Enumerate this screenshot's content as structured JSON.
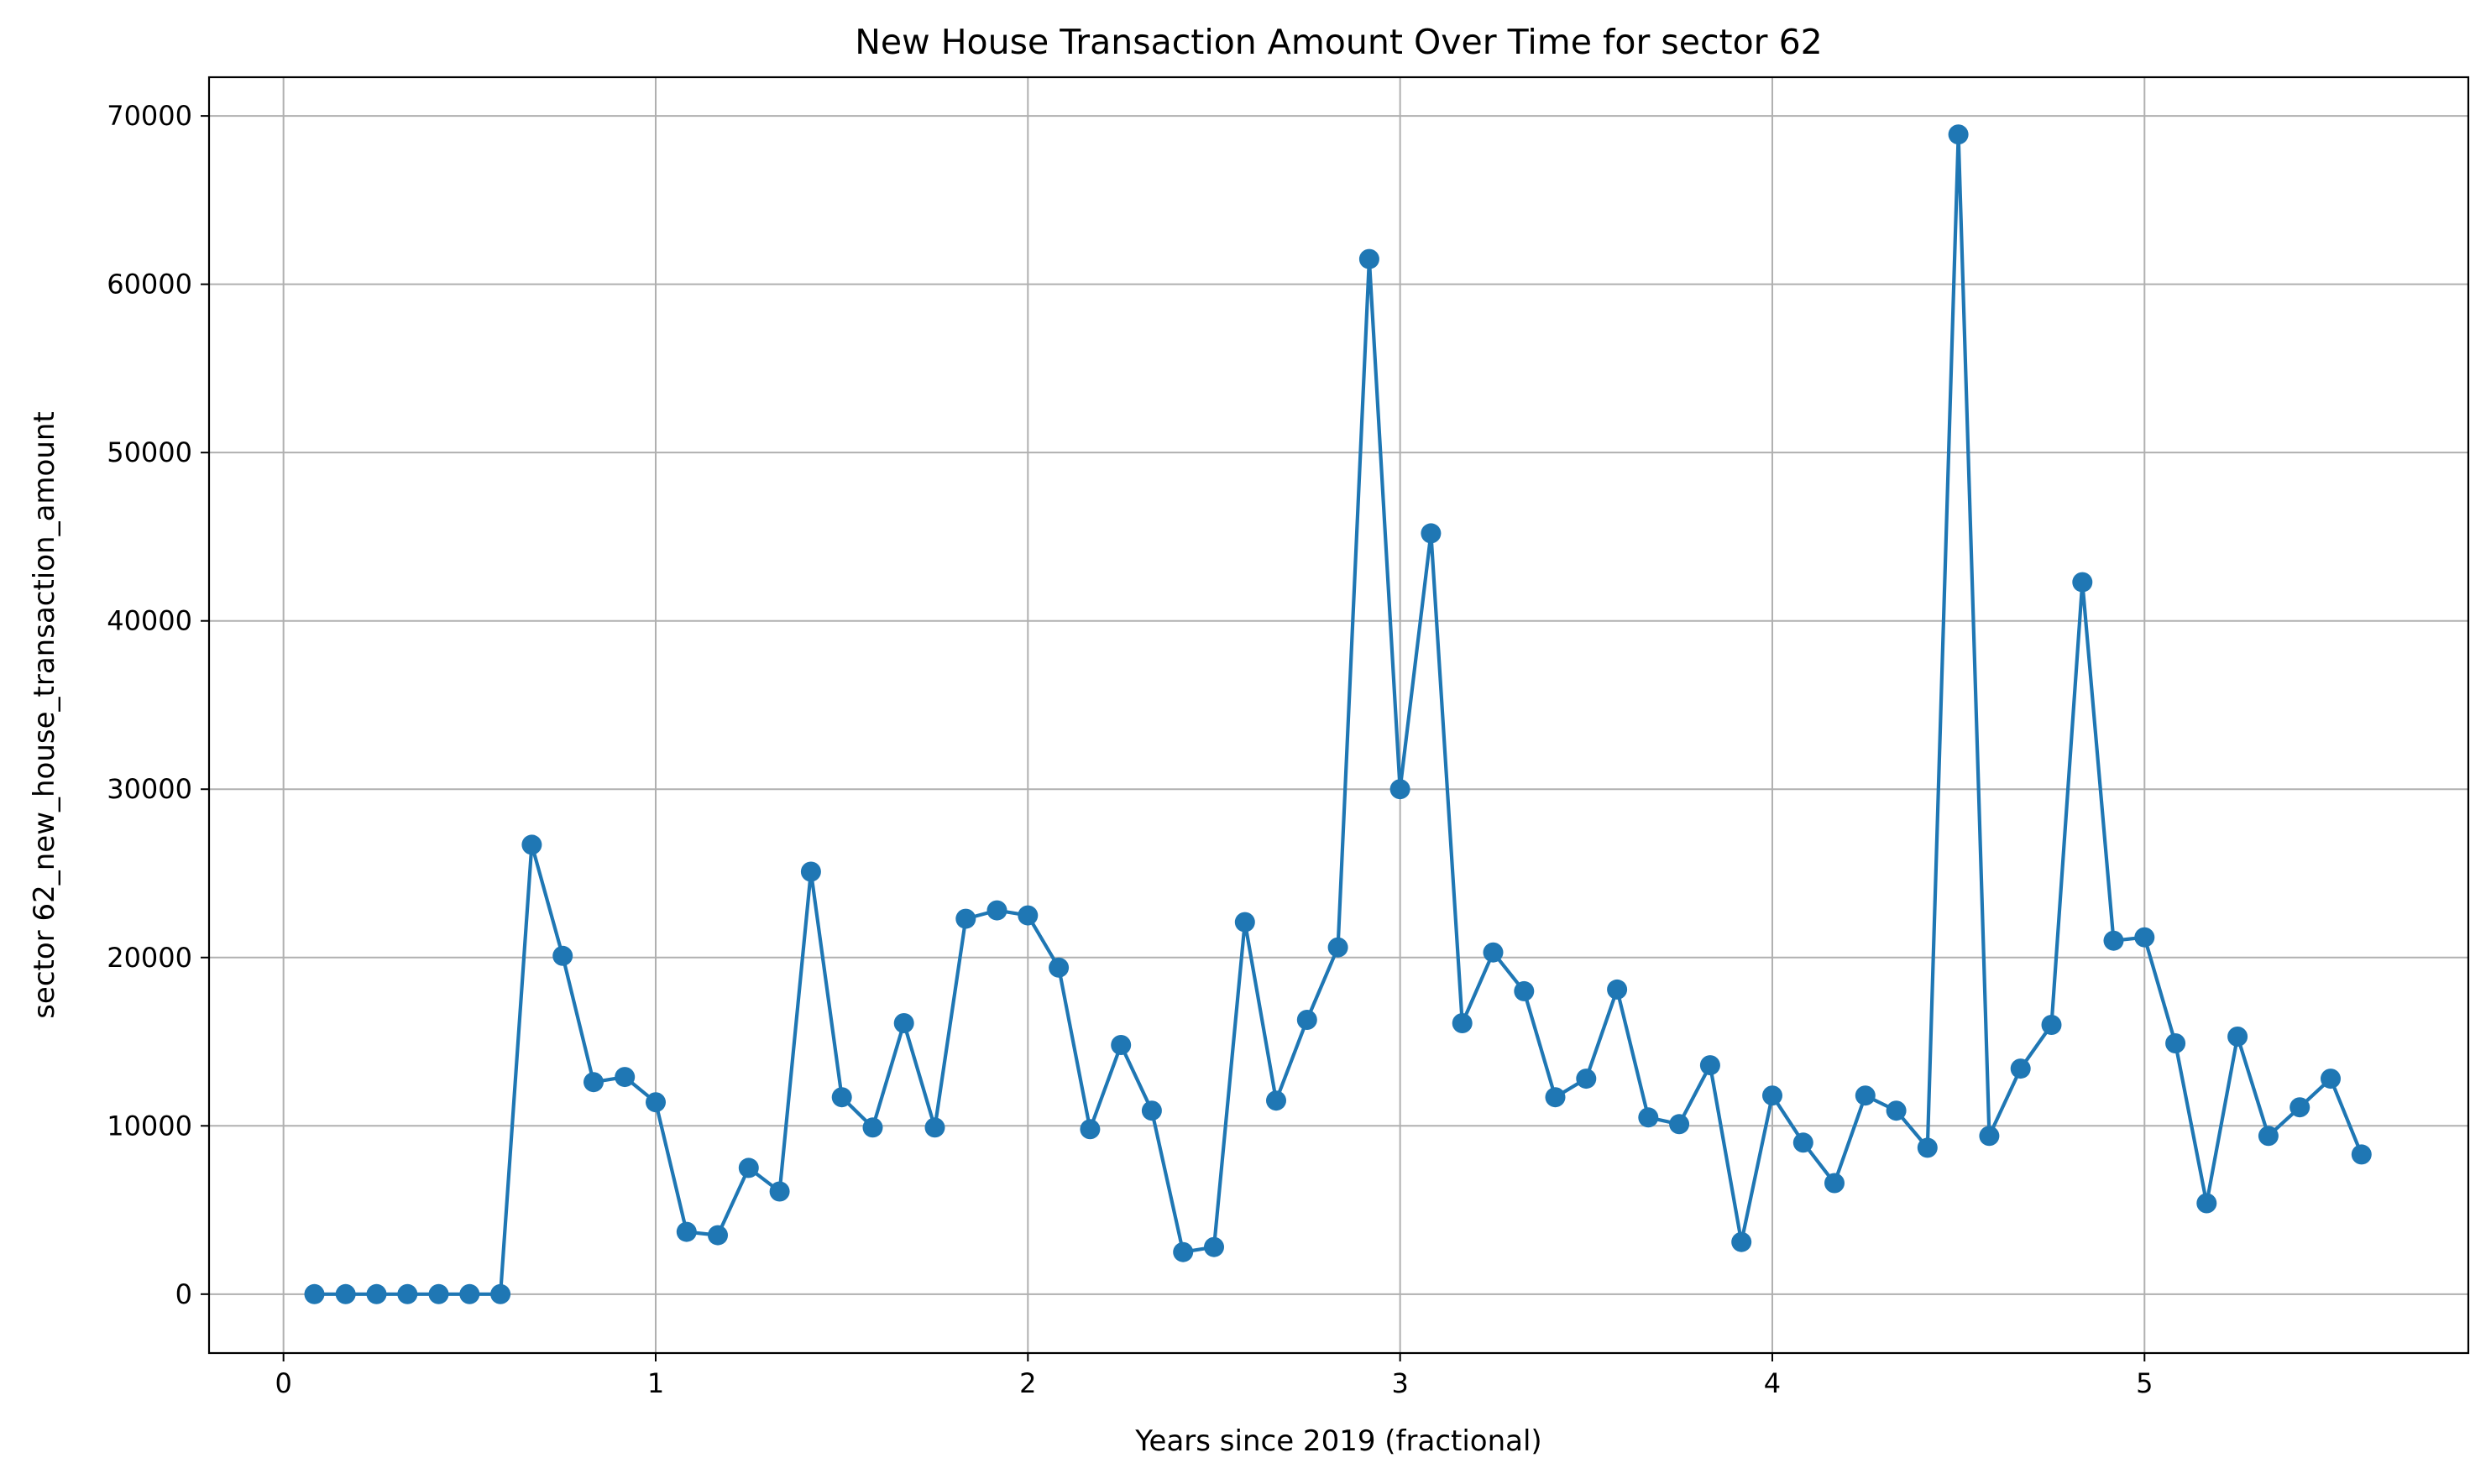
{
  "chart_data": {
    "type": "line",
    "title": "New House Transaction Amount Over Time for sector 62",
    "xlabel": "Years since 2019 (fractional)",
    "ylabel": "sector 62_new_house_transaction_amount",
    "xlim": [
      -0.2,
      5.87
    ],
    "ylim": [
      -3500,
      72300
    ],
    "xticks": [
      0,
      1,
      2,
      3,
      4,
      5
    ],
    "yticks": [
      0,
      10000,
      20000,
      30000,
      40000,
      50000,
      60000,
      70000
    ],
    "grid": true,
    "legend": "none",
    "color": "#1f77b4",
    "series": [
      {
        "x": [
          0.083,
          0.167,
          0.25,
          0.333,
          0.417,
          0.5,
          0.583,
          0.667,
          0.75,
          0.833,
          0.917,
          1.0,
          1.083,
          1.167,
          1.25,
          1.333,
          1.417,
          1.5,
          1.583,
          1.667,
          1.75,
          1.833,
          1.917,
          2.0,
          2.083,
          2.167,
          2.25,
          2.333,
          2.417,
          2.5,
          2.583,
          2.667,
          2.75,
          2.833,
          2.917,
          3.0,
          3.083,
          3.167,
          3.25,
          3.333,
          3.417,
          3.5,
          3.583,
          3.667,
          3.75,
          3.833,
          3.917,
          4.0,
          4.083,
          4.167,
          4.25,
          4.333,
          4.417,
          4.5,
          4.583,
          4.667,
          4.75,
          4.833,
          4.917,
          5.0,
          5.083,
          5.167,
          5.25,
          5.333,
          5.417,
          5.5,
          5.583
        ],
        "values": [
          0,
          0,
          0,
          0,
          0,
          0,
          0,
          26700,
          20100,
          12600,
          12900,
          11400,
          3700,
          3500,
          7500,
          6100,
          25100,
          11700,
          9900,
          16100,
          9900,
          22300,
          22800,
          22500,
          19400,
          9800,
          14800,
          10900,
          2500,
          2800,
          22100,
          11500,
          16300,
          20600,
          61500,
          30000,
          45200,
          16100,
          20300,
          18000,
          11700,
          12800,
          18100,
          10500,
          10100,
          13600,
          3100,
          11800,
          9000,
          6600,
          11800,
          10900,
          8700,
          68900,
          9400,
          13400,
          16000,
          42300,
          21000,
          21200,
          14900,
          5400,
          15300,
          9400,
          11100,
          12800,
          8300
        ]
      }
    ]
  }
}
